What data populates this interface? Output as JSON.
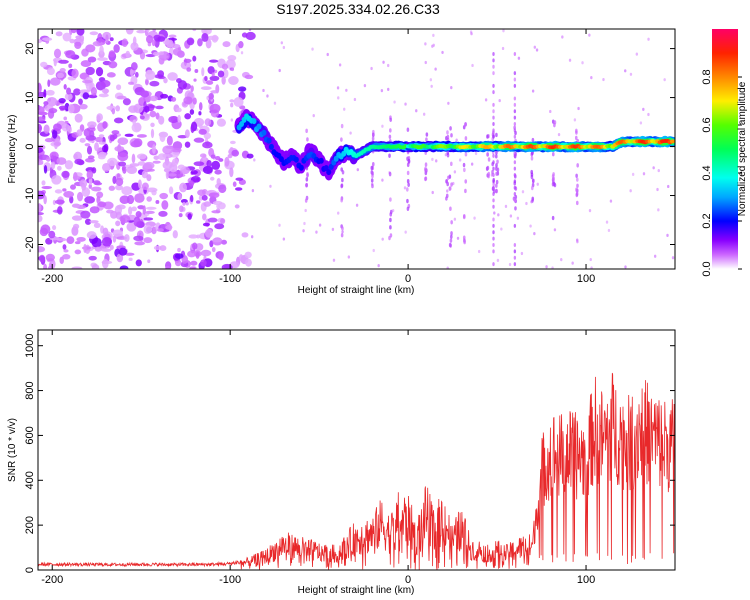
{
  "page": {
    "title": "S197.2025.334.02.26.C33"
  },
  "chart_data": [
    {
      "type": "heatmap",
      "title": "S197.2025.334.02.26.C33",
      "xlabel": "Height of straight line (km)",
      "ylabel": "Frequency (Hz)",
      "xlim": [
        -208,
        150
      ],
      "ylim": [
        -25,
        24
      ],
      "xticks": [
        -200,
        -100,
        0,
        100
      ],
      "yticks": [
        -20,
        -10,
        0,
        10,
        20
      ],
      "colorbar": {
        "label": "Normalized spectral amplitude",
        "range": [
          0,
          1
        ],
        "ticks": [
          0.0,
          0.2,
          0.4,
          0.6,
          0.8
        ]
      },
      "ridge": {
        "x": [
          -95,
          -90,
          -85,
          -80,
          -75,
          -70,
          -65,
          -60,
          -55,
          -50,
          -45,
          -40,
          -35,
          -30,
          -20,
          -10,
          0,
          20,
          40,
          60,
          80,
          100,
          115,
          120,
          130,
          150
        ],
        "freq": [
          4,
          6,
          4,
          2,
          -1,
          -3,
          -2,
          -4,
          -1,
          -3,
          -5,
          -2,
          -1,
          -2,
          0,
          0,
          0,
          0,
          0,
          0,
          0,
          0,
          0,
          1,
          1,
          1
        ],
        "amplitude": [
          0.3,
          0.35,
          0.3,
          0.25,
          0.2,
          0.2,
          0.22,
          0.2,
          0.25,
          0.2,
          0.18,
          0.3,
          0.35,
          0.4,
          0.45,
          0.5,
          0.55,
          0.65,
          0.75,
          0.85,
          0.9,
          0.88,
          0.8,
          0.85,
          0.9,
          0.92
        ]
      }
    },
    {
      "type": "line",
      "xlabel": "Height of straight line (km)",
      "ylabel": "SNR (10 * v/v)",
      "xlim": [
        -208,
        150
      ],
      "ylim": [
        0,
        1070
      ],
      "xticks": [
        -200,
        -100,
        0,
        100
      ],
      "yticks": [
        0,
        200,
        400,
        600,
        800,
        1000
      ],
      "color": "#e8282a",
      "series": [
        {
          "name": "SNR",
          "x": [
            -208,
            -190,
            -170,
            -150,
            -130,
            -110,
            -100,
            -90,
            -80,
            -70,
            -60,
            -50,
            -40,
            -30,
            -20,
            -15,
            -10,
            -5,
            0,
            5,
            10,
            15,
            20,
            25,
            30,
            35,
            40,
            45,
            50,
            55,
            60,
            65,
            70,
            75,
            80,
            85,
            90,
            95,
            100,
            105,
            110,
            115,
            120,
            125,
            130,
            135,
            140,
            145,
            150
          ],
          "values": [
            25,
            25,
            24,
            25,
            24,
            25,
            28,
            45,
            75,
            140,
            120,
            100,
            90,
            175,
            200,
            260,
            200,
            290,
            270,
            180,
            310,
            230,
            290,
            160,
            240,
            120,
            110,
            90,
            110,
            90,
            110,
            130,
            130,
            480,
            580,
            560,
            580,
            560,
            560,
            700,
            640,
            720,
            650,
            620,
            700,
            680,
            640,
            620,
            620
          ]
        }
      ]
    }
  ]
}
